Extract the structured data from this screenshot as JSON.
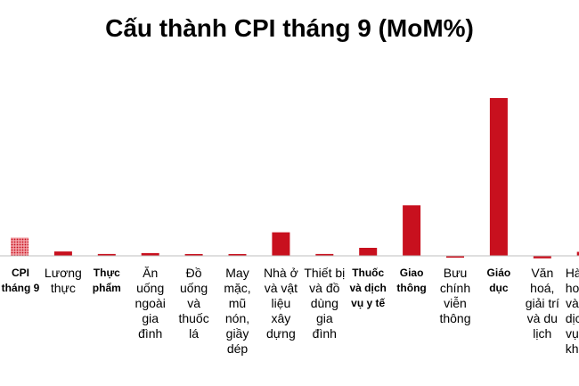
{
  "chart_data": {
    "type": "bar",
    "title": "Cấu thành CPI tháng 9 (MoM%)",
    "xlabel": "",
    "ylabel": "",
    "grid": false,
    "legend": "none",
    "categories": [
      "CPI tháng 9",
      "Lương thực",
      "Thực phẩm",
      "Ăn uống ngoài gia đình",
      "Đồ uống và thuốc lá",
      "May mặc, mũ nón, giầy dép",
      "Nhà ở và vật liệu xây dựng",
      "Thiết bị và đồ dùng gia đình",
      "Thuốc và dịch vụ y tế",
      "Giao thông",
      "Bưu chính viễn thông",
      "Giáo dục",
      "Văn hoá, giải trí và du lịch",
      "Hàng hoá và dịch vụ khác"
    ],
    "values": [
      0.59,
      0.14,
      0.06,
      0.09,
      0.02,
      0.05,
      0.76,
      0.06,
      0.26,
      1.63,
      -0.03,
      5.09,
      -0.08,
      0.13
    ],
    "ylim": [
      -0.2,
      5.2
    ],
    "colors": {
      "bar": "#c8101e",
      "highlight_bar": "#e0202e",
      "axis": "#bfbfbf"
    },
    "highlight_index": 0
  }
}
